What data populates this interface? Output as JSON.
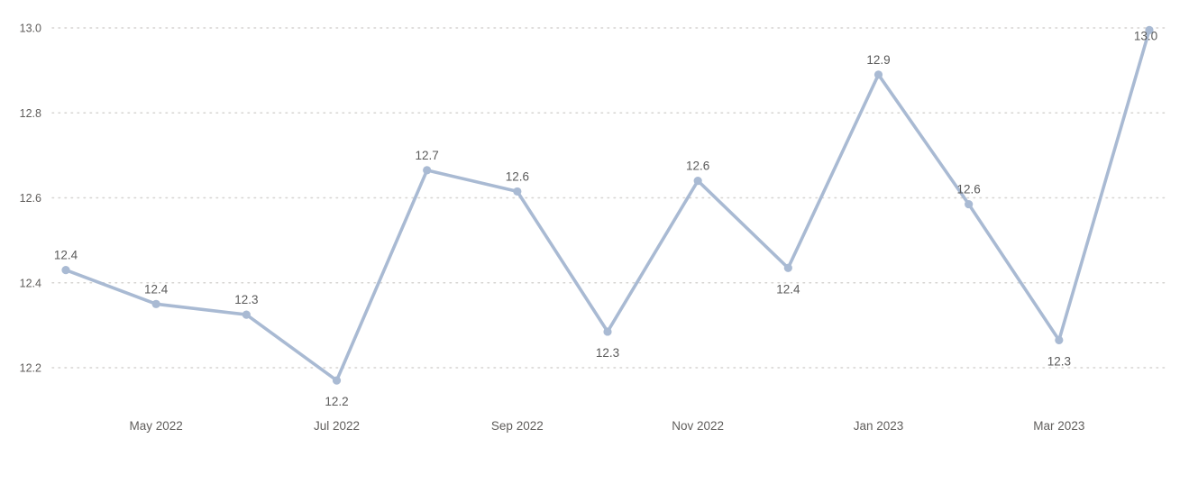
{
  "chart": {
    "line_color": "#a9bad3",
    "marker_color": "#a9bad3",
    "data_label_color": "#5a5a5a",
    "axis_label_color": "#605e5c",
    "grid_color": "#d6d4d2",
    "background_color": "#ffffff"
  },
  "chart_data": {
    "type": "line",
    "title": "",
    "xlabel": "",
    "ylabel": "",
    "legend": "none",
    "grid": "dotted-horizontal",
    "ylim": [
      12.1,
      13.05
    ],
    "y_axis": {
      "tick_labels": [
        "13.0",
        "12.8",
        "12.6",
        "12.4",
        "12.2"
      ],
      "tick_values": [
        13.0,
        12.8,
        12.6,
        12.4,
        12.2
      ]
    },
    "x_ticks": [
      {
        "index": 1,
        "label": "May 2022"
      },
      {
        "index": 3,
        "label": "Jul 2022"
      },
      {
        "index": 5,
        "label": "Sep 2022"
      },
      {
        "index": 7,
        "label": "Nov 2022"
      },
      {
        "index": 9,
        "label": "Jan 2023"
      },
      {
        "index": 11,
        "label": "Mar 2023"
      }
    ],
    "points": [
      {
        "label": "12.4",
        "value": 12.43,
        "label_pos": "above"
      },
      {
        "label": "12.4",
        "value": 12.35,
        "label_pos": "above"
      },
      {
        "label": "12.3",
        "value": 12.325,
        "label_pos": "above"
      },
      {
        "label": "12.2",
        "value": 12.17,
        "label_pos": "below"
      },
      {
        "label": "12.7",
        "value": 12.665,
        "label_pos": "above"
      },
      {
        "label": "12.6",
        "value": 12.615,
        "label_pos": "above"
      },
      {
        "label": "12.3",
        "value": 12.285,
        "label_pos": "below"
      },
      {
        "label": "12.6",
        "value": 12.64,
        "label_pos": "above"
      },
      {
        "label": "12.4",
        "value": 12.435,
        "label_pos": "below"
      },
      {
        "label": "12.9",
        "value": 12.89,
        "label_pos": "above"
      },
      {
        "label": "12.6",
        "value": 12.585,
        "label_pos": "above"
      },
      {
        "label": "12.3",
        "value": 12.265,
        "label_pos": "below"
      },
      {
        "label": "13.0",
        "value": 12.995,
        "label_pos": "inside"
      }
    ]
  }
}
